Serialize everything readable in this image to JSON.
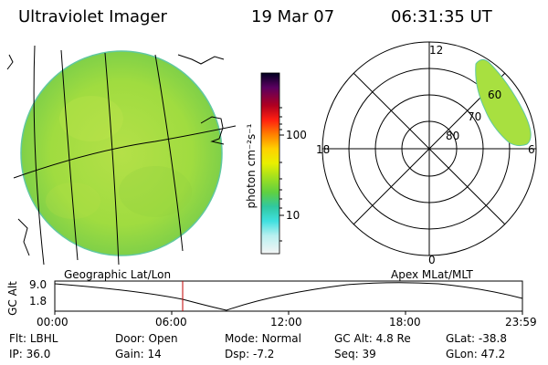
{
  "header": {
    "title": "Ultraviolet Imager",
    "date": "19 Mar 07",
    "time": "06:31:35 UT"
  },
  "colorbar": {
    "label": "photon cm⁻²s⁻¹",
    "ticks": [
      "100",
      "10"
    ],
    "colors": [
      "#000000",
      "#5a0070",
      "#8a0070",
      "#d00000",
      "#ff2020",
      "#ff8000",
      "#ffc000",
      "#ffff00",
      "#c8f000",
      "#80e020",
      "#30d060",
      "#20c0c0",
      "#40e0e0",
      "#a0f0f0",
      "#d0f8f8",
      "#f0f0f0"
    ]
  },
  "left_panel": {
    "caption": "Geographic Lat/Lon",
    "disk_color": "#a8e040"
  },
  "right_panel": {
    "caption": "Apex MLat/MLT",
    "mlt_labels": {
      "top": "12",
      "left": "18",
      "right": "6",
      "bottom": "0"
    },
    "mlat_labels": [
      "60",
      "70",
      "80"
    ],
    "oval_color": "#a8e040"
  },
  "altitude_plot": {
    "ylabel": "GC Alt",
    "yticks": [
      "9.0",
      "1.8"
    ],
    "xticks": [
      "00:00",
      "06:00",
      "12:00",
      "18:00",
      "23:59"
    ],
    "cursor_time": "06:31",
    "cursor_color": "#c00000"
  },
  "info": {
    "row1": [
      {
        "key": "Flt:",
        "value": "LBHL"
      },
      {
        "key": "Door:",
        "value": "Open"
      },
      {
        "key": "Mode:",
        "value": "Normal"
      },
      {
        "key": "GC Alt:",
        "value": "4.8 Re"
      },
      {
        "key": "GLat:",
        "value": "-38.8"
      }
    ],
    "row2": [
      {
        "key": "IP:",
        "value": "36.0"
      },
      {
        "key": "Gain:",
        "value": "14"
      },
      {
        "key": "Dsp:",
        "value": "-7.2"
      },
      {
        "key": "Seq:",
        "value": "39"
      },
      {
        "key": "GLon:",
        "value": "47.2"
      }
    ]
  }
}
